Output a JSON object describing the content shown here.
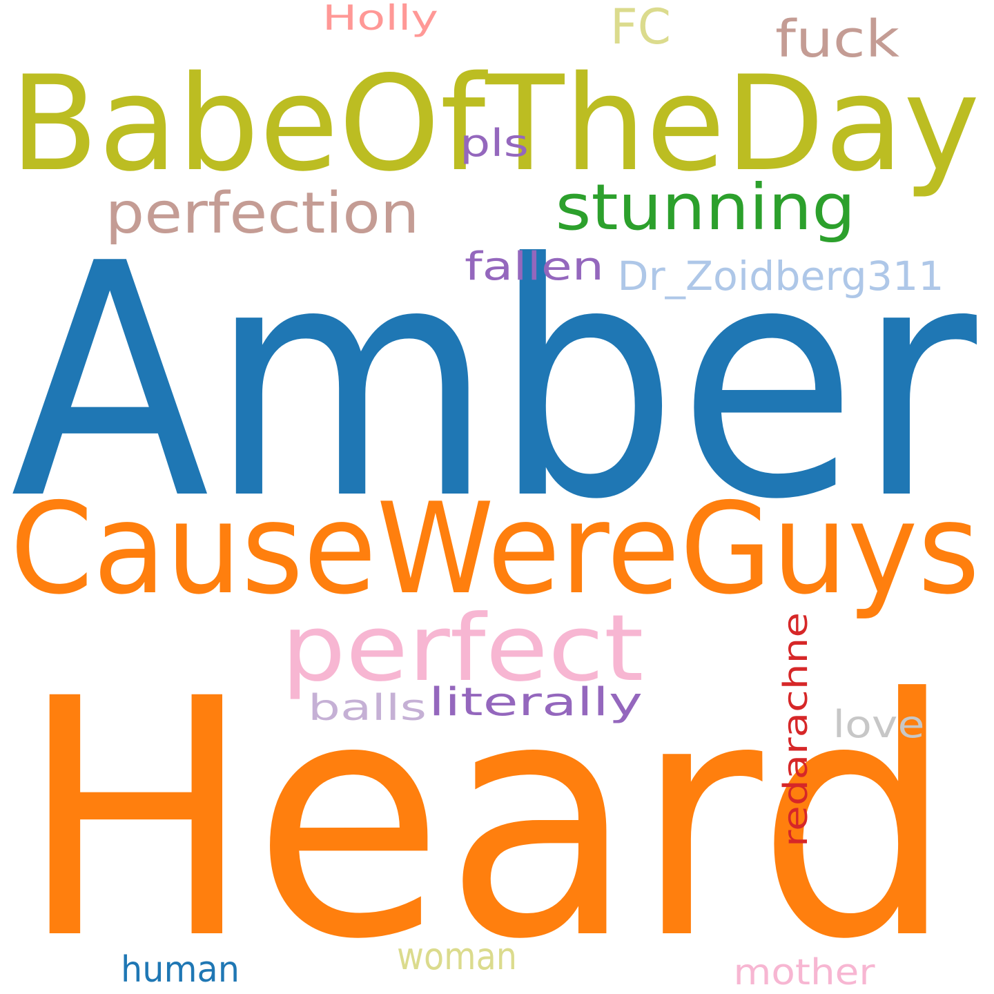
{
  "words": [
    {
      "text": "Amber",
      "color": "#1f77b4"
    },
    {
      "text": "Heard",
      "color": "#ff7f0e"
    },
    {
      "text": "CauseWereGuys",
      "color": "#ff7f0e"
    },
    {
      "text": "BabeOfTheDay",
      "color": "#bcbd22"
    },
    {
      "text": "perfect",
      "color": "#f7b6d2"
    },
    {
      "text": "stunning",
      "color": "#2ca02c"
    },
    {
      "text": "perfection",
      "color": "#c49c94"
    },
    {
      "text": "fuck",
      "color": "#c49c94"
    },
    {
      "text": "FC",
      "color": "#dbdb8d"
    },
    {
      "text": "Holly",
      "color": "#ff9896"
    },
    {
      "text": "pls",
      "color": "#9467bd"
    },
    {
      "text": "fallen",
      "color": "#9467bd"
    },
    {
      "text": "Dr_Zoidberg311",
      "color": "#aec7e8"
    },
    {
      "text": "redarachne",
      "color": "#d62728"
    },
    {
      "text": "literally",
      "color": "#9467bd"
    },
    {
      "text": "balls",
      "color": "#c5b0d5"
    },
    {
      "text": "love",
      "color": "#c7c7c7"
    },
    {
      "text": "human",
      "color": "#1f77b4"
    },
    {
      "text": "woman",
      "color": "#dbdb8d"
    },
    {
      "text": "mother",
      "color": "#f7b6d2"
    }
  ]
}
